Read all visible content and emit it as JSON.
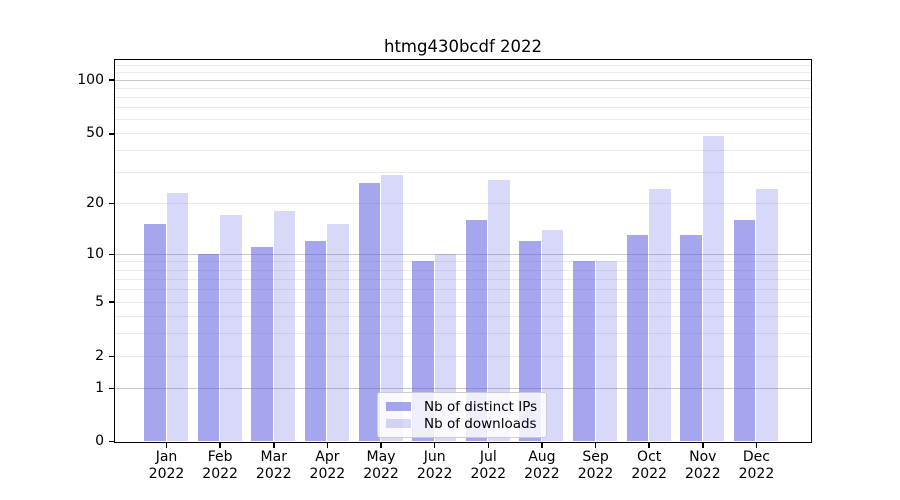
{
  "chart_data": {
    "type": "bar",
    "title": "htmg430bcdf 2022",
    "xlabel": "",
    "ylabel": "",
    "yscale": "log1p",
    "ylim": [
      0,
      131
    ],
    "yticks": [
      100,
      50,
      20,
      10,
      5,
      2,
      1,
      0
    ],
    "grid_major": [
      1,
      10,
      100
    ],
    "grid_minor": [
      2,
      3,
      4,
      5,
      6,
      7,
      8,
      9,
      20,
      30,
      40,
      50,
      60,
      70,
      80,
      90,
      110,
      120
    ],
    "legend_position": "lower center",
    "categories": [
      "Jan\n2022",
      "Feb\n2022",
      "Mar\n2022",
      "Apr\n2022",
      "May\n2022",
      "Jun\n2022",
      "Jul\n2022",
      "Aug\n2022",
      "Sep\n2022",
      "Oct\n2022",
      "Nov\n2022",
      "Dec\n2022"
    ],
    "series": [
      {
        "name": "Nb of distinct IPs",
        "color": "rgba(92,92,226,0.55)",
        "values": [
          15,
          10,
          11,
          12,
          26,
          9,
          16,
          12,
          9,
          13,
          13,
          16
        ]
      },
      {
        "name": "Nb of downloads",
        "color": "rgba(92,92,226,0.24)",
        "values": [
          23,
          17,
          18,
          15,
          29,
          10,
          27,
          14,
          9,
          24,
          48,
          24
        ]
      }
    ]
  },
  "colors": {
    "grid_major": "#c8c8c8",
    "grid_minor": "#ebebeb",
    "spine": "#000000",
    "background": "#ffffff",
    "legend_border": "#cccccc"
  }
}
